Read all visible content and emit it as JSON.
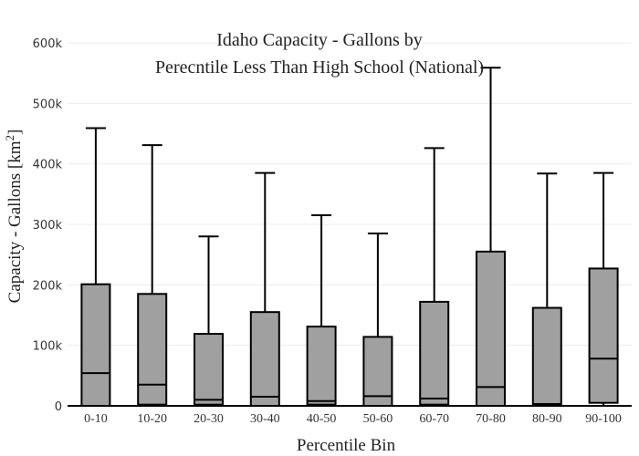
{
  "chart_data": {
    "type": "box",
    "title_lines": [
      "Idaho Capacity - Gallons by",
      "Perecntile Less Than High School (National)"
    ],
    "xlabel": "Percentile Bin",
    "ylabel_main": "Capacity - Gallons  [km",
    "ylabel_sup": "2",
    "ylabel_end": "]",
    "ylim": [
      0,
      600000
    ],
    "yticks": [
      0,
      100000,
      200000,
      300000,
      400000,
      500000,
      600000
    ],
    "ytick_labels": [
      "0",
      "100k",
      "200k",
      "300k",
      "400k",
      "500k",
      "600k"
    ],
    "grid": true,
    "box_color": "#a0a0a0",
    "categories": [
      "0-10",
      "10-20",
      "20-30",
      "30-40",
      "40-50",
      "50-60",
      "60-70",
      "70-80",
      "80-90",
      "90-100"
    ],
    "boxes": [
      {
        "min": 0,
        "q1": 0,
        "median": 54000,
        "q3": 201000,
        "max": 459000
      },
      {
        "min": 0,
        "q1": 2000,
        "median": 35000,
        "q3": 185000,
        "max": 431000
      },
      {
        "min": 0,
        "q1": 2000,
        "median": 10000,
        "q3": 119000,
        "max": 280000
      },
      {
        "min": 0,
        "q1": 0,
        "median": 15000,
        "q3": 155000,
        "max": 385000
      },
      {
        "min": 0,
        "q1": 2000,
        "median": 8000,
        "q3": 131000,
        "max": 315000
      },
      {
        "min": 0,
        "q1": 0,
        "median": 16000,
        "q3": 114000,
        "max": 285000
      },
      {
        "min": 0,
        "q1": 2000,
        "median": 12000,
        "q3": 172000,
        "max": 426000
      },
      {
        "min": 0,
        "q1": 0,
        "median": 31000,
        "q3": 255000,
        "max": 559000
      },
      {
        "min": 0,
        "q1": 2000,
        "median": 3000,
        "q3": 162000,
        "max": 384000
      },
      {
        "min": 0,
        "q1": 5000,
        "median": 78000,
        "q3": 227000,
        "max": 385000
      }
    ]
  }
}
